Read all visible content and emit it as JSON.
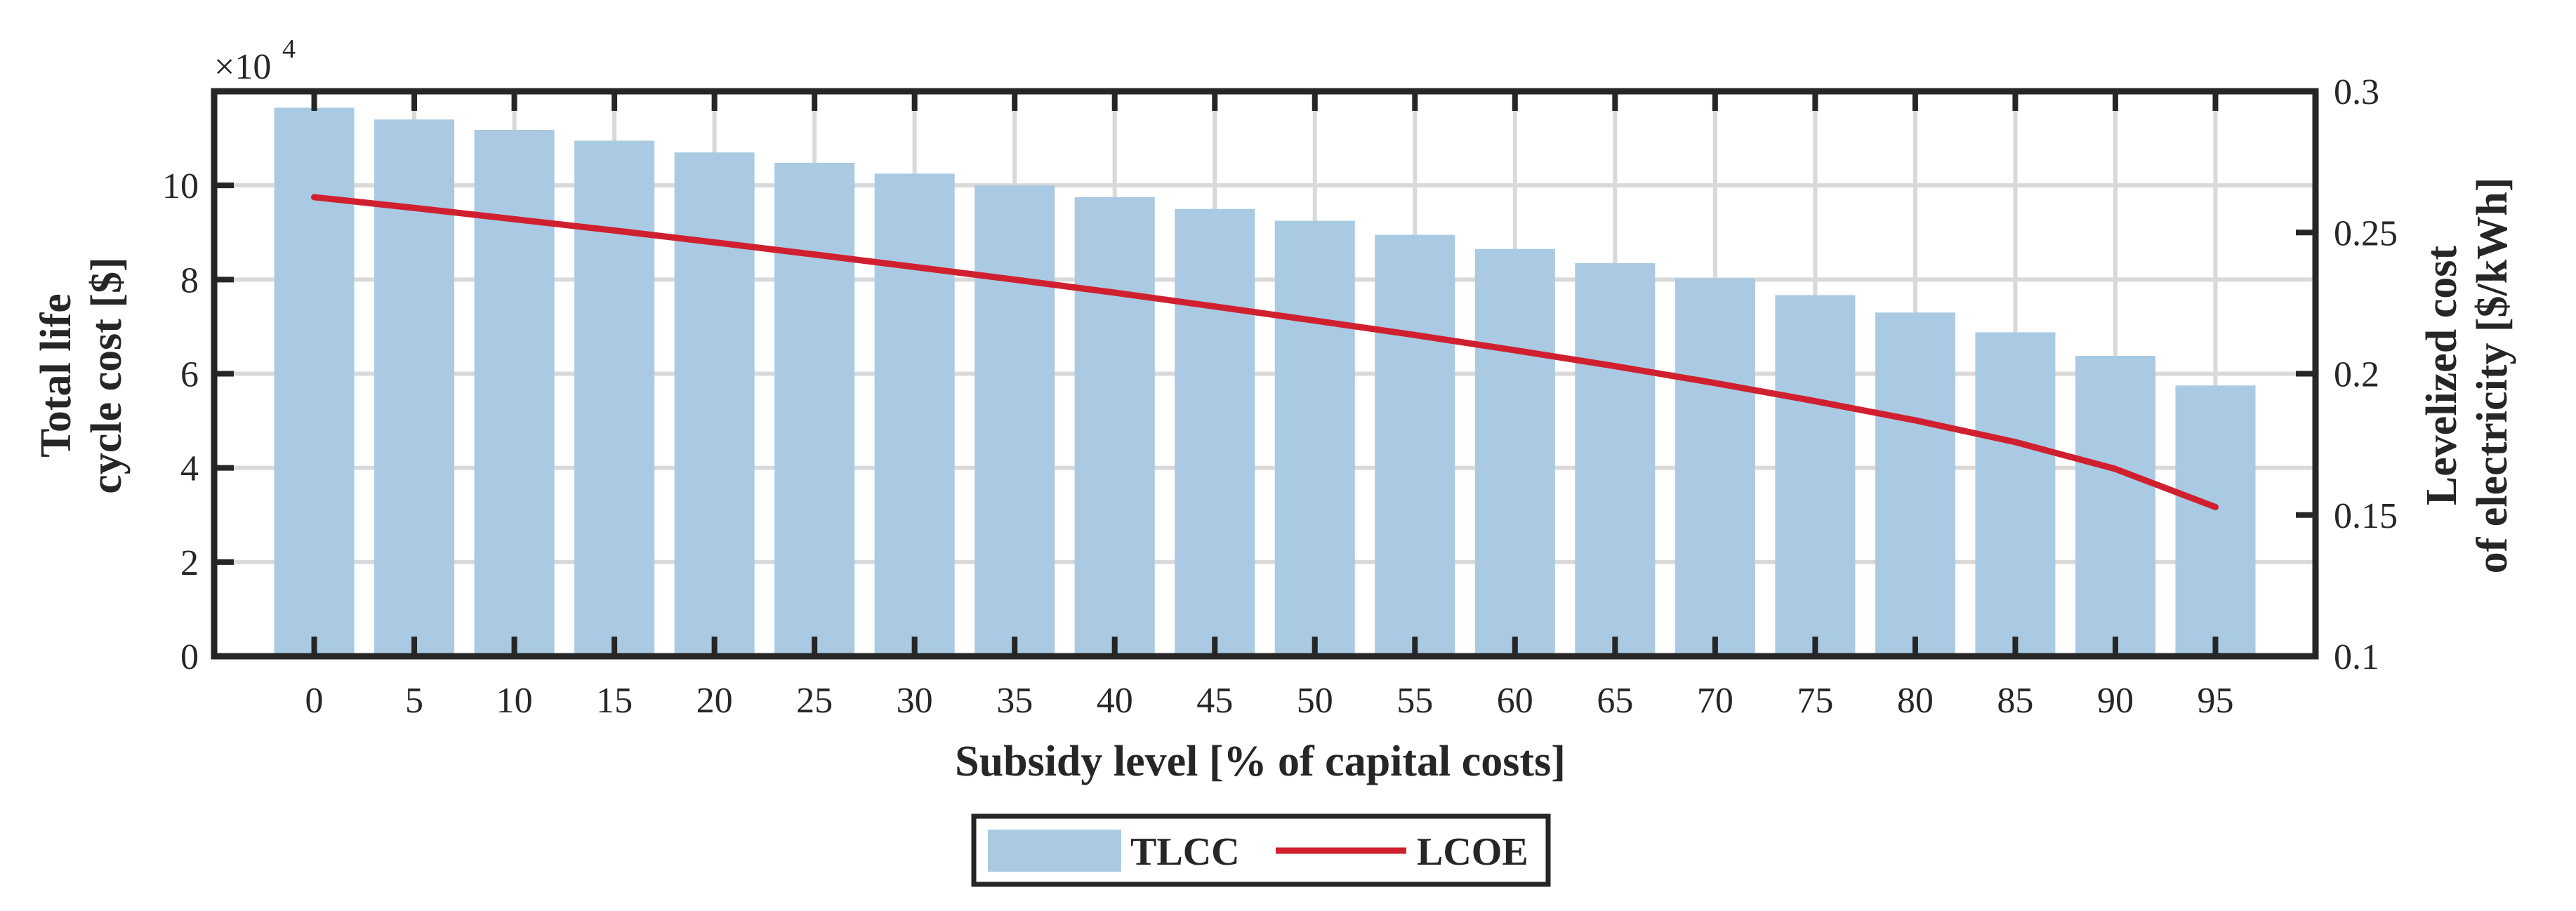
{
  "chart_data": {
    "type": "bar+line",
    "categories": [
      "0",
      "5",
      "10",
      "15",
      "20",
      "25",
      "30",
      "35",
      "40",
      "45",
      "50",
      "55",
      "60",
      "65",
      "70",
      "75",
      "80",
      "85",
      "90",
      "95"
    ],
    "series": [
      {
        "name": "TLCC",
        "type": "bar",
        "axis": "left",
        "color": "#a9cae2",
        "values": [
          116500,
          114000,
          111800,
          109500,
          107000,
          104800,
          102500,
          100000,
          97500,
          95000,
          92500,
          89500,
          86500,
          83500,
          80300,
          76700,
          73000,
          68800,
          63800,
          57500
        ]
      },
      {
        "name": "LCOE",
        "type": "line",
        "axis": "right",
        "color": "#d0202f",
        "values": [
          0.2625,
          0.2587,
          0.2547,
          0.2507,
          0.2465,
          0.2422,
          0.2378,
          0.2333,
          0.2287,
          0.2238,
          0.2188,
          0.2137,
          0.2083,
          0.2027,
          0.1967,
          0.1903,
          0.1835,
          0.1758,
          0.1663,
          0.1528
        ]
      }
    ],
    "xlabel": "Subsidy level [% of capital costs]",
    "ylabel_left": [
      "Total life",
      "cycle cost [$]"
    ],
    "ylabel_right": [
      "Levelized cost",
      "of electricity [$/kWh]"
    ],
    "y_left": {
      "lim": [
        0,
        120000
      ],
      "ticks": [
        0,
        20000,
        40000,
        60000,
        80000,
        100000
      ],
      "tick_labels": [
        "0",
        "2",
        "4",
        "6",
        "8",
        "10"
      ],
      "exponent_base": "×10",
      "exponent_power": "4"
    },
    "y_right": {
      "lim": [
        0.1,
        0.3
      ],
      "ticks": [
        0.1,
        0.15,
        0.2,
        0.25,
        0.3
      ],
      "tick_labels": [
        "0.1",
        "0.15",
        "0.2",
        "0.25",
        "0.3"
      ]
    },
    "grid": true,
    "legend": {
      "position": "bottom-center",
      "entries": [
        "TLCC",
        "LCOE"
      ]
    }
  }
}
